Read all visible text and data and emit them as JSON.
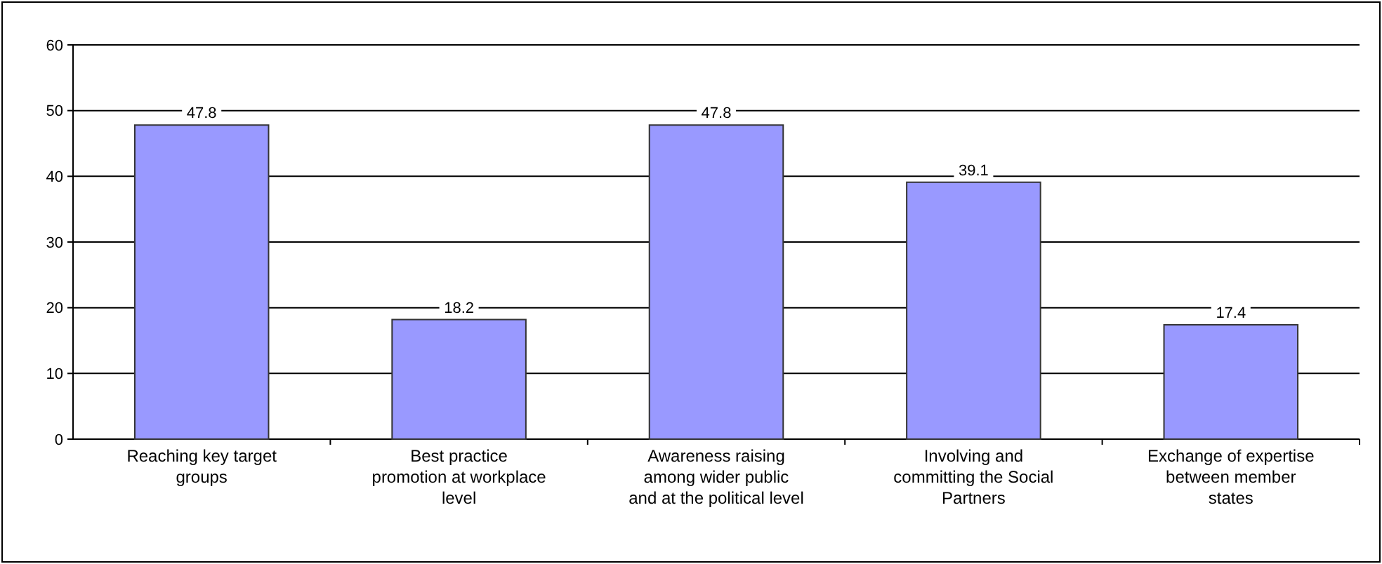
{
  "chart_data": {
    "type": "bar",
    "categories": [
      "Reaching key target groups",
      "Best practice promotion at workplace level",
      "Awareness raising among wider public and at the political level",
      "Involving and committing the Social Partners",
      "Exchange of expertise between member states"
    ],
    "values": [
      47.8,
      18.2,
      47.8,
      39.1,
      17.4
    ],
    "color": "#9999ff",
    "ylim": [
      0,
      60
    ],
    "yticks": [
      0,
      10,
      20,
      30,
      40,
      50,
      60
    ],
    "grid": "y",
    "data_labels": true
  }
}
